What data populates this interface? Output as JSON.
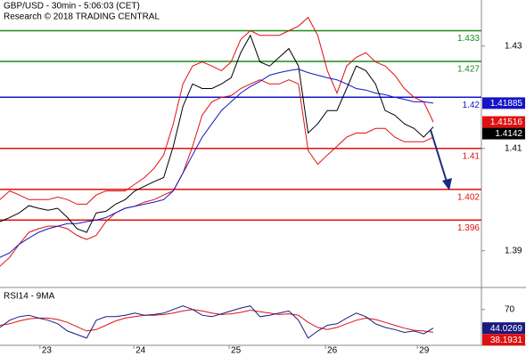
{
  "chart_data": [
    {
      "type": "line",
      "title": "GBP/USD - 30min - 5:06:03 (CET)",
      "subtitle": "Research © 2018 TRADING CENTRAL",
      "x": [
        0,
        2,
        4,
        6,
        8,
        10,
        12,
        14,
        16,
        18,
        20,
        22,
        24,
        26,
        28,
        30,
        32,
        34,
        36,
        38,
        40,
        42,
        44,
        46,
        48,
        50,
        52,
        54,
        56,
        58,
        60,
        62,
        64,
        66,
        68,
        70,
        72,
        74,
        76,
        78,
        80,
        82,
        84,
        86,
        88,
        90
      ],
      "xlim": [
        0,
        100
      ],
      "ylim": [
        1.383,
        1.439
      ],
      "yticks": [
        1.43,
        1.41,
        1.39
      ],
      "levels": [
        {
          "value": 1.433,
          "color": "#1a8a1a"
        },
        {
          "value": 1.427,
          "color": "#1a8a1a"
        },
        {
          "value": 1.42,
          "color": "#1414c8"
        },
        {
          "value": 1.41,
          "color": "#e01010"
        },
        {
          "value": 1.402,
          "color": "#e01010"
        },
        {
          "value": 1.396,
          "color": "#e01010"
        }
      ],
      "series": [
        {
          "color": "#e01010",
          "box": true,
          "values": [
            1.4,
            1.4017,
            1.4009,
            1.4,
            1.4,
            1.4,
            1.4005,
            1.4,
            1.3991,
            1.3991,
            1.4009,
            1.4017,
            1.4017,
            1.4017,
            1.403,
            1.4043,
            1.4061,
            1.4087,
            1.4148,
            1.4226,
            1.4261,
            1.4269,
            1.4261,
            1.4252,
            1.4269,
            1.4313,
            1.433,
            1.4321,
            1.4321,
            1.4321,
            1.433,
            1.4339,
            1.4356,
            1.4321,
            1.4252,
            1.4208,
            1.4261,
            1.4278,
            1.4287,
            1.4269,
            1.4261,
            1.4243,
            1.4217,
            1.42,
            1.4191,
            1.41516
          ]
        },
        {
          "color": "#e01010",
          "box": false,
          "values": [
            1.387,
            1.3887,
            1.3913,
            1.3936,
            1.3943,
            1.3948,
            1.3948,
            1.3943,
            1.393,
            1.3922,
            1.393,
            1.3957,
            1.3974,
            1.3983,
            1.3987,
            1.3995,
            1.4,
            1.4009,
            1.4017,
            1.4052,
            1.4104,
            1.4165,
            1.4191,
            1.42,
            1.4203,
            1.4217,
            1.4226,
            1.4234,
            1.4226,
            1.4226,
            1.4234,
            1.4226,
            1.4096,
            1.4069,
            1.4087,
            1.4104,
            1.4122,
            1.413,
            1.413,
            1.4139,
            1.4139,
            1.4122,
            1.4113,
            1.4113,
            1.4113,
            1.4122
          ]
        },
        {
          "color": "#1414c8",
          "box": true,
          "values": [
            1.3887,
            1.3896,
            1.3913,
            1.3925,
            1.3936,
            1.3943,
            1.3948,
            1.3953,
            1.3953,
            1.3957,
            1.396,
            1.3965,
            1.3974,
            1.3983,
            1.3987,
            1.3991,
            1.3995,
            1.4,
            1.4017,
            1.4052,
            1.4087,
            1.4122,
            1.4148,
            1.4174,
            1.4191,
            1.4208,
            1.4221,
            1.4231,
            1.4243,
            1.4248,
            1.4252,
            1.4255,
            1.4248,
            1.4243,
            1.4238,
            1.4234,
            1.4226,
            1.4217,
            1.4214,
            1.4208,
            1.4205,
            1.42,
            1.4196,
            1.4191,
            1.4191,
            1.41885
          ]
        },
        {
          "color": "#000000",
          "box": true,
          "values": [
            1.3957,
            1.3965,
            1.3974,
            1.3988,
            1.3983,
            1.3979,
            1.3983,
            1.3965,
            1.3943,
            1.3936,
            1.3974,
            1.3977,
            1.3991,
            1.4,
            1.4017,
            1.4026,
            1.4035,
            1.4043,
            1.4104,
            1.4182,
            1.4226,
            1.4217,
            1.4217,
            1.4226,
            1.4238,
            1.4287,
            1.4321,
            1.4269,
            1.4261,
            1.4278,
            1.4295,
            1.4261,
            1.413,
            1.4148,
            1.4174,
            1.4174,
            1.4217,
            1.4261,
            1.4252,
            1.4226,
            1.4174,
            1.4165,
            1.4148,
            1.4139,
            1.4122,
            1.4142
          ]
        }
      ]
    },
    {
      "type": "line",
      "title": "RSI14 - 9MA",
      "x": [
        0,
        2,
        4,
        6,
        8,
        10,
        12,
        14,
        16,
        18,
        20,
        22,
        24,
        26,
        28,
        30,
        32,
        34,
        36,
        38,
        40,
        42,
        44,
        46,
        48,
        50,
        52,
        54,
        56,
        58,
        60,
        62,
        64,
        66,
        68,
        70,
        72,
        74,
        76,
        78,
        80,
        82,
        84,
        86,
        88,
        90
      ],
      "xlim": [
        0,
        100
      ],
      "xticks": [
        {
          "value": 8.3,
          "label": "23"
        },
        {
          "value": 27.8,
          "label": "24"
        },
        {
          "value": 47.6,
          "label": "25"
        },
        {
          "value": 67.6,
          "label": "26"
        },
        {
          "value": 86.7,
          "label": "29"
        }
      ],
      "ylim": [
        20,
        97
      ],
      "yticks": [
        70
      ],
      "series": [
        {
          "color": "#e01010",
          "box": true,
          "values": [
            48,
            50,
            54,
            57,
            58,
            58,
            56,
            52,
            46,
            40,
            42,
            48,
            54,
            58,
            60,
            62,
            62,
            63,
            65,
            68,
            70,
            68,
            65,
            63,
            64,
            66,
            69,
            67,
            65,
            63,
            64,
            62,
            52,
            45,
            42,
            45,
            50,
            55,
            58,
            56,
            52,
            48,
            44,
            41,
            40,
            38.1931
          ]
        },
        {
          "color": "#1a1a80",
          "box": true,
          "values": [
            45,
            55,
            60,
            62,
            58,
            55,
            50,
            40,
            35,
            30,
            55,
            60,
            60,
            62,
            65,
            62,
            63,
            65,
            70,
            75,
            70,
            62,
            60,
            64,
            68,
            72,
            75,
            60,
            62,
            65,
            68,
            55,
            30,
            40,
            48,
            50,
            58,
            65,
            60,
            50,
            45,
            42,
            38,
            40,
            36,
            44.0269
          ]
        }
      ]
    }
  ]
}
